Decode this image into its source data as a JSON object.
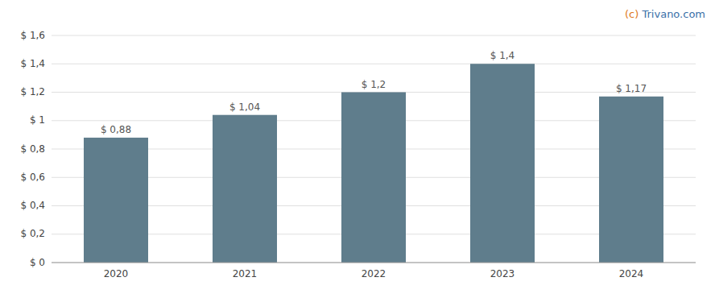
{
  "chart_data": {
    "type": "bar",
    "categories": [
      "2020",
      "2021",
      "2022",
      "2023",
      "2024"
    ],
    "values": [
      0.88,
      1.04,
      1.2,
      1.4,
      1.17
    ],
    "value_labels": [
      "$ 0,88",
      "$ 1,04",
      "$ 1,2",
      "$ 1,4",
      "$ 1,17"
    ],
    "data_labels": true,
    "color": "#5f7d8c",
    "ylim": [
      0,
      1.6
    ],
    "yticks": [
      {
        "value": 0,
        "label": "$ 0"
      },
      {
        "value": 0.2,
        "label": "$ 0,2"
      },
      {
        "value": 0.4,
        "label": "$ 0,4"
      },
      {
        "value": 0.6,
        "label": "$ 0,6"
      },
      {
        "value": 0.8,
        "label": "$ 0,8"
      },
      {
        "value": 1.0,
        "label": "$ 1"
      },
      {
        "value": 1.2,
        "label": "$ 1,2"
      },
      {
        "value": 1.4,
        "label": "$ 1,4"
      },
      {
        "value": 1.6,
        "label": "$ 1,6"
      }
    ],
    "grid": true,
    "annotations": [
      {
        "text": "(c) ",
        "color": "#e07820"
      },
      {
        "text": "Trivano.com",
        "color": "#3a6fa8"
      }
    ]
  }
}
